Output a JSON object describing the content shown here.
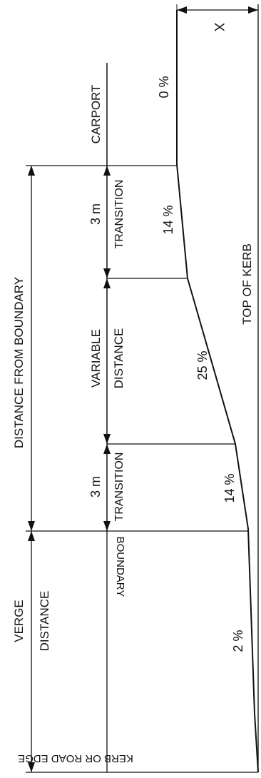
{
  "labels": {
    "x_dim": "X",
    "carport": "CARPORT",
    "carport_grade": "0 %",
    "transition_top_len": "3 m",
    "transition_top": "TRANSITION",
    "transition_top_grade": "14 %",
    "distance_from_boundary": "DISTANCE FROM BOUNDARY",
    "variable_line1": "VARIABLE",
    "variable_line2": "DISTANCE",
    "variable_grade": "25 %",
    "top_of_kerb": "TOP  OF  KERB",
    "transition_bottom_len": "3 m",
    "transition_bottom": "TRANSITION",
    "transition_bottom_grade": "14 %",
    "boundary": "BOUNDARY",
    "verge_line1": "VERGE",
    "verge_line2": "DISTANCE",
    "verge_grade": "2 %",
    "kerb_edge": "KERB OR ROAD EDGE"
  }
}
